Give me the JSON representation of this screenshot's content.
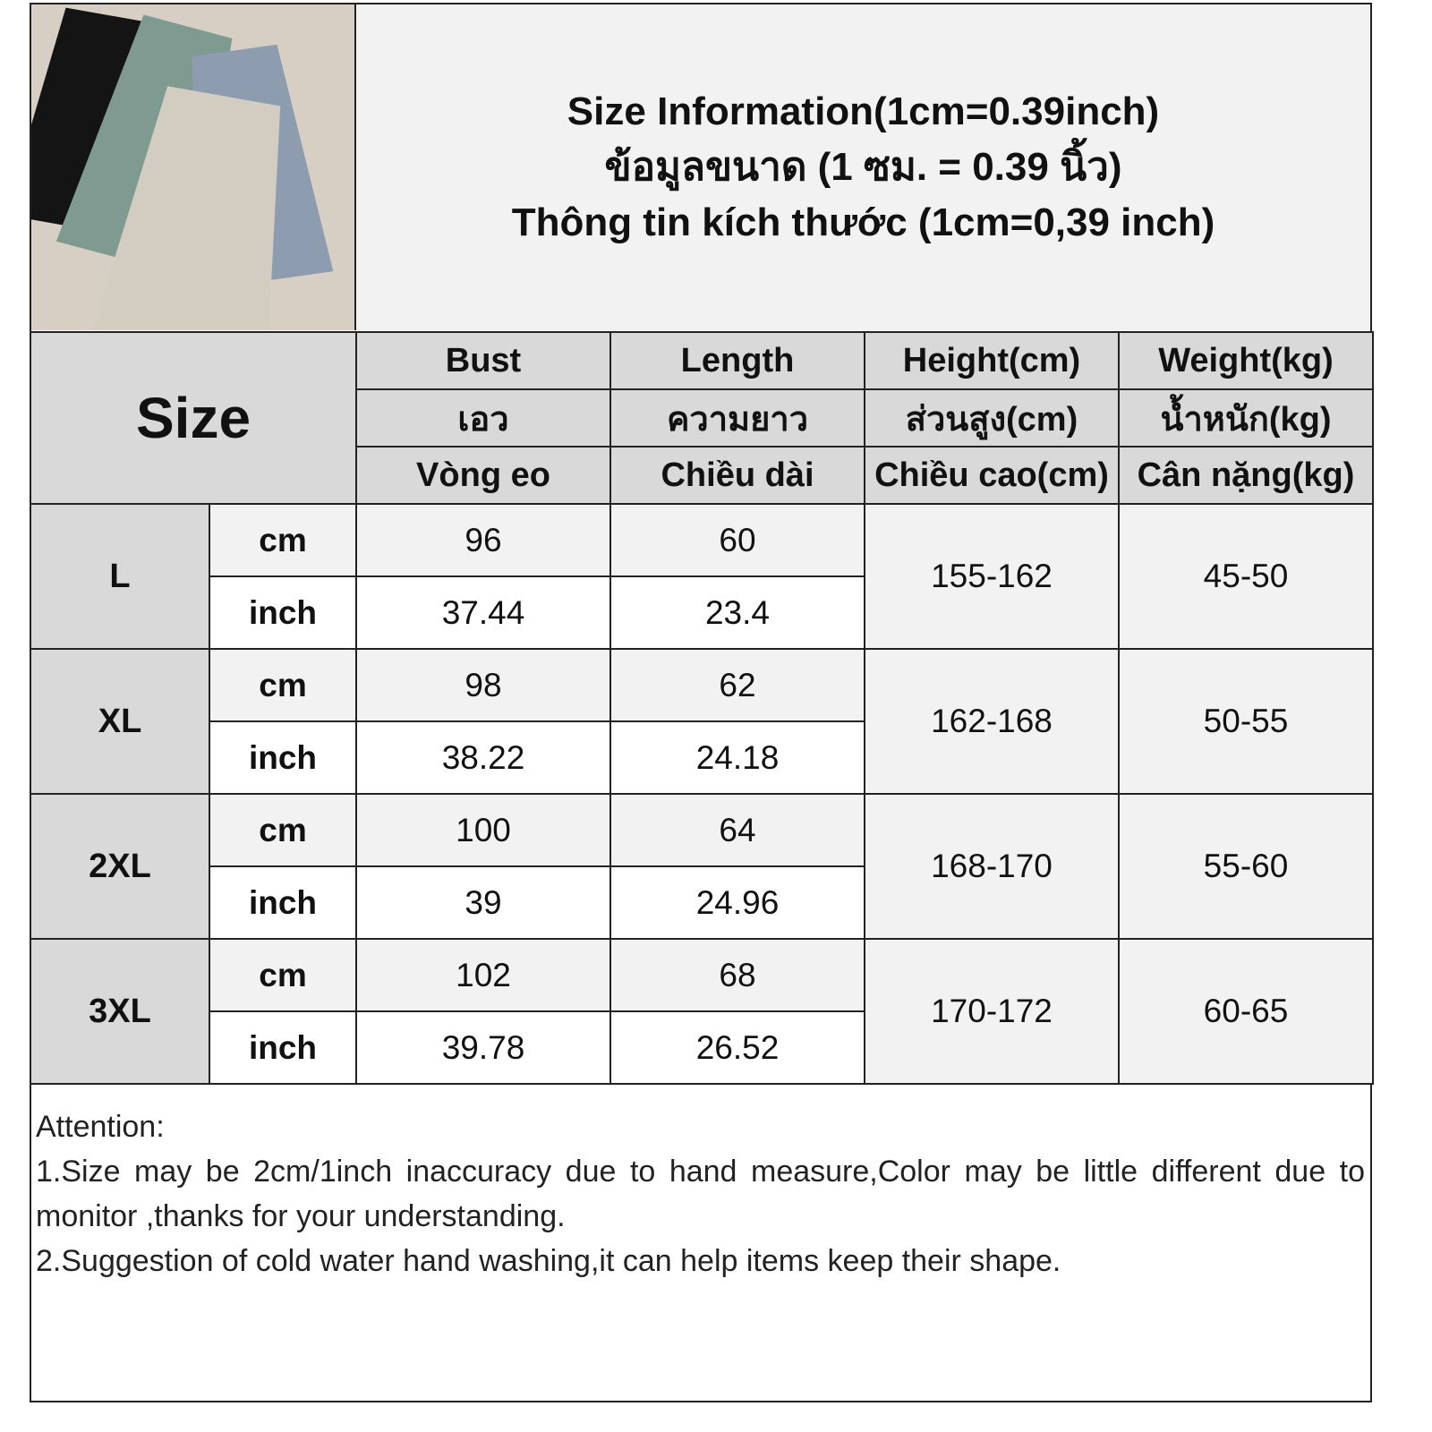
{
  "title": {
    "line1": "Size Information(1cm=0.39inch)",
    "line2": "ข้อมูลขนาด (1 ซม. = 0.39 นิ้ว)",
    "line3": "Thông tin kích thước (1cm=0,39 inch)"
  },
  "photo": {
    "colors": [
      "#141414",
      "#7f9a90",
      "#8e9cb0",
      "#d3ccc0"
    ]
  },
  "table": {
    "size_label": "Size",
    "columns": [
      [
        "Bust",
        "เอว",
        "Vòng eo"
      ],
      [
        "Length",
        "ความยาว",
        "Chiều dài"
      ],
      [
        "Height(cm)",
        "ส่วนสูง(cm)",
        "Chiều cao(cm)"
      ],
      [
        "Weight(kg)",
        "น้ำหนัก(kg)",
        "Cân nặng(kg)"
      ]
    ],
    "unit_cm": "cm",
    "unit_inch": "inch",
    "rows": [
      {
        "size": "L",
        "bust_cm": "96",
        "length_cm": "60",
        "bust_inch": "37.44",
        "length_inch": "23.4",
        "height": "155-162",
        "weight": "45-50"
      },
      {
        "size": "XL",
        "bust_cm": "98",
        "length_cm": "62",
        "bust_inch": "38.22",
        "length_inch": "24.18",
        "height": "162-168",
        "weight": "50-55"
      },
      {
        "size": "2XL",
        "bust_cm": "100",
        "length_cm": "64",
        "bust_inch": "39",
        "length_inch": "24.96",
        "height": "168-170",
        "weight": "55-60"
      },
      {
        "size": "3XL",
        "bust_cm": "102",
        "length_cm": "68",
        "bust_inch": "39.78",
        "length_inch": "26.52",
        "height": "170-172",
        "weight": "60-65"
      }
    ]
  },
  "notes": {
    "heading": "Attention:",
    "line1": "1.Size may be 2cm/1inch inaccuracy due to hand measure,Color may be little different due to monitor ,thanks for your understanding.",
    "line2": "2.Suggestion of cold water hand washing,it can help items keep their shape."
  }
}
